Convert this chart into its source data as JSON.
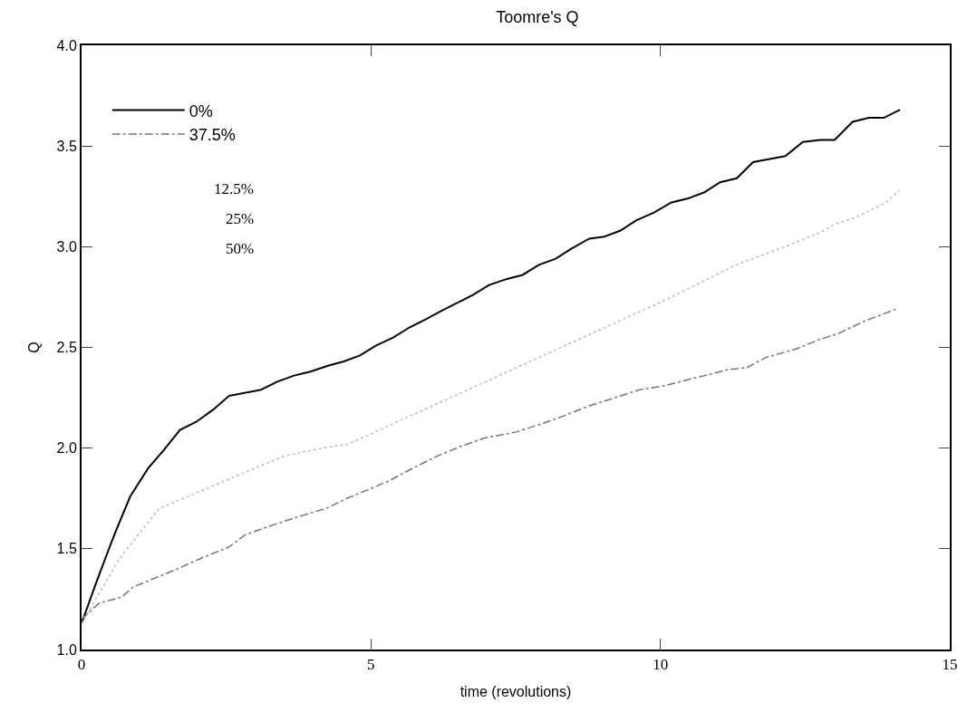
{
  "chart_data": {
    "type": "line",
    "title": "Toomre's Q",
    "xlabel": "time (revolutions)",
    "ylabel": "Q",
    "xlim": [
      0,
      15
    ],
    "xticks": [
      0,
      5,
      10,
      15
    ],
    "ylim": [
      1.0,
      4.0
    ],
    "yticks": [
      {
        "value": 1.0,
        "label": "1.0"
      },
      {
        "value": 1.5,
        "label": "1.5"
      },
      {
        "value": 2.0,
        "label": "2.0"
      },
      {
        "value": 2.5,
        "label": "2.5"
      },
      {
        "value": 3.0,
        "label": "3.0"
      },
      {
        "value": 3.5,
        "label": "3.5"
      },
      {
        "value": 4.0,
        "label": "4.0"
      }
    ],
    "legend": "top left",
    "marker": "none",
    "annotations": [
      "12.5%",
      "25%",
      "50%"
    ],
    "series": [
      {
        "name": "0%",
        "color": "#000000",
        "line_style": "solid",
        "x": [
          0,
          0.25,
          0.42,
          0.58,
          0.84,
          1.15,
          1.42,
          1.7,
          1.98,
          2.27,
          2.55,
          3.1,
          3.38,
          3.67,
          3.95,
          4.27,
          4.53,
          4.81,
          5.09,
          5.39,
          5.67,
          5.95,
          6.21,
          6.48,
          6.76,
          7.04,
          7.35,
          7.62,
          7.9,
          8.19,
          8.46,
          8.77,
          9.03,
          9.31,
          9.58,
          9.89,
          10.19,
          10.48,
          10.76,
          11.03,
          11.32,
          11.6,
          12.16,
          12.46,
          12.76,
          13.01,
          13.32,
          13.6,
          13.86,
          14.14
        ],
        "values": [
          1.13,
          1.33,
          1.46,
          1.58,
          1.76,
          1.9,
          1.99,
          2.09,
          2.13,
          2.19,
          2.26,
          2.29,
          2.33,
          2.36,
          2.38,
          2.41,
          2.43,
          2.46,
          2.51,
          2.55,
          2.6,
          2.64,
          2.68,
          2.72,
          2.76,
          2.81,
          2.84,
          2.86,
          2.91,
          2.94,
          2.99,
          3.04,
          3.05,
          3.08,
          3.13,
          3.17,
          3.22,
          3.24,
          3.27,
          3.32,
          3.34,
          3.42,
          3.45,
          3.52,
          3.53,
          3.53,
          3.62,
          3.64,
          3.64,
          3.68
        ]
      },
      {
        "name": "37.5%",
        "color": "#777777",
        "line_style": "dashdot",
        "x": [
          0,
          0.3,
          0.69,
          0.89,
          1.57,
          2.04,
          2.55,
          2.83,
          3.22,
          3.75,
          4.22,
          4.58,
          4.92,
          5.33,
          5.72,
          6.14,
          6.56,
          6.96,
          7.51,
          7.94,
          8.33,
          8.77,
          9.21,
          9.64,
          10.08,
          10.62,
          11.17,
          11.5,
          11.82,
          12.32,
          12.76,
          13.08,
          13.52,
          14.07
        ],
        "values": [
          1.15,
          1.23,
          1.26,
          1.31,
          1.39,
          1.45,
          1.51,
          1.57,
          1.61,
          1.66,
          1.7,
          1.75,
          1.79,
          1.84,
          1.9,
          1.96,
          2.01,
          2.05,
          2.08,
          2.12,
          2.16,
          2.21,
          2.25,
          2.29,
          2.31,
          2.35,
          2.39,
          2.4,
          2.45,
          2.49,
          2.54,
          2.57,
          2.63,
          2.69
        ]
      },
      {
        "color": "#bbbbbb",
        "line_style": "dotted",
        "x": [
          0,
          0.65,
          1.34,
          3.49,
          4.16,
          4.61,
          10.12,
          11.31,
          12.24,
          12.5,
          12.76,
          13.0,
          13.41,
          13.9,
          14.13
        ],
        "values": [
          1.13,
          1.45,
          1.7,
          1.96,
          2.0,
          2.02,
          2.74,
          2.91,
          3.01,
          3.04,
          3.07,
          3.11,
          3.15,
          3.22,
          3.28
        ]
      }
    ]
  }
}
